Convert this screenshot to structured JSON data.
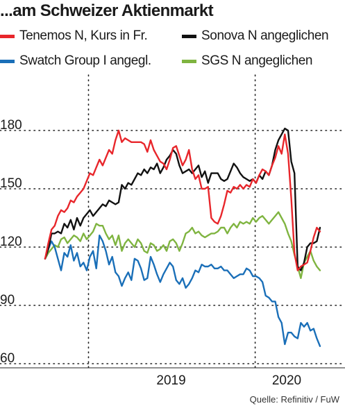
{
  "title": "...am Schweizer Aktienmarkt",
  "source": "Quelle: Refinitiv / FuW",
  "chart_data": {
    "type": "line",
    "x_ticks": [
      "2019",
      "2020"
    ],
    "y_ticks": [
      60,
      90,
      120,
      150,
      180
    ],
    "ylim": [
      60,
      195
    ],
    "grid": "dotted",
    "legend_position": "top",
    "series": [
      {
        "name": "Tenemos N, Kurs in Fr.",
        "color": "#e8262b",
        "x": [
          "2018-09-28",
          "2018-10-05",
          "2018-10-12",
          "2018-10-19",
          "2018-10-26",
          "2018-11-02",
          "2018-11-09",
          "2018-11-16",
          "2018-11-23",
          "2018-11-30",
          "2018-12-07",
          "2018-12-14",
          "2018-12-21",
          "2018-12-28",
          "2019-01-04",
          "2019-01-11",
          "2019-01-18",
          "2019-01-25",
          "2019-02-01",
          "2019-02-08",
          "2019-02-15",
          "2019-02-22",
          "2019-03-01",
          "2019-03-08",
          "2019-03-15",
          "2019-03-22",
          "2019-03-29",
          "2019-04-05",
          "2019-04-12",
          "2019-04-19",
          "2019-04-26",
          "2019-05-03",
          "2019-05-10",
          "2019-05-17",
          "2019-05-24",
          "2019-05-31",
          "2019-06-07",
          "2019-06-14",
          "2019-06-21",
          "2019-06-28",
          "2019-07-05",
          "2019-07-12",
          "2019-07-19",
          "2019-07-26",
          "2019-08-02",
          "2019-08-09",
          "2019-08-16",
          "2019-08-23",
          "2019-08-30",
          "2019-09-06",
          "2019-09-13",
          "2019-09-20",
          "2019-09-27",
          "2019-10-04",
          "2019-10-11",
          "2019-10-18",
          "2019-10-25",
          "2019-11-01",
          "2019-11-08",
          "2019-11-15",
          "2019-11-22",
          "2019-11-29",
          "2019-12-06",
          "2019-12-13",
          "2019-12-20",
          "2019-12-27",
          "2020-01-03",
          "2020-01-10",
          "2020-01-17",
          "2020-01-24",
          "2020-01-31",
          "2020-02-07",
          "2020-02-14",
          "2020-02-21",
          "2020-02-28",
          "2020-03-06",
          "2020-03-13",
          "2020-03-20",
          "2020-03-27",
          "2020-04-03",
          "2020-04-10",
          "2020-04-17",
          "2020-04-24",
          "2020-05-01",
          "2020-05-08",
          "2020-05-15",
          "2020-05-22"
        ],
        "values": [
          114,
          122,
          129,
          131,
          136,
          139,
          138,
          140,
          144,
          143,
          146,
          148,
          150,
          154,
          158,
          157,
          161,
          165,
          162,
          166,
          170,
          168,
          175,
          180,
          174,
          176,
          175,
          174,
          174,
          174,
          174,
          173,
          169,
          175,
          170,
          167,
          164,
          163,
          160,
          165,
          171,
          172,
          167,
          162,
          165,
          170,
          160,
          155,
          157,
          150,
          150,
          151,
          135,
          133,
          132,
          136,
          142,
          149,
          148,
          151,
          150,
          152,
          150,
          152,
          151,
          155,
          153,
          157,
          160,
          159,
          157,
          162,
          166,
          172,
          168,
          178,
          168,
          145,
          117,
          108,
          110,
          111,
          112,
          118,
          125,
          130,
          128
        ]
      },
      {
        "name": "Sonova N angeglichen",
        "color": "#111111",
        "x": [
          "2018-09-28",
          "2018-10-05",
          "2018-10-12",
          "2018-10-19",
          "2018-10-26",
          "2018-11-02",
          "2018-11-09",
          "2018-11-16",
          "2018-11-23",
          "2018-11-30",
          "2018-12-07",
          "2018-12-14",
          "2018-12-21",
          "2018-12-28",
          "2019-01-04",
          "2019-01-11",
          "2019-01-18",
          "2019-01-25",
          "2019-02-01",
          "2019-02-08",
          "2019-02-15",
          "2019-02-22",
          "2019-03-01",
          "2019-03-08",
          "2019-03-15",
          "2019-03-22",
          "2019-03-29",
          "2019-04-05",
          "2019-04-12",
          "2019-04-19",
          "2019-04-26",
          "2019-05-03",
          "2019-05-10",
          "2019-05-17",
          "2019-05-24",
          "2019-05-31",
          "2019-06-07",
          "2019-06-14",
          "2019-06-21",
          "2019-06-28",
          "2019-07-05",
          "2019-07-12",
          "2019-07-19",
          "2019-07-26",
          "2019-08-02",
          "2019-08-09",
          "2019-08-16",
          "2019-08-23",
          "2019-08-30",
          "2019-09-06",
          "2019-09-13",
          "2019-09-20",
          "2019-09-27",
          "2019-10-04",
          "2019-10-11",
          "2019-10-18",
          "2019-10-25",
          "2019-11-01",
          "2019-11-08",
          "2019-11-15",
          "2019-11-22",
          "2019-11-29",
          "2019-12-06",
          "2019-12-13",
          "2019-12-20",
          "2019-12-27",
          "2020-01-03",
          "2020-01-10",
          "2020-01-17",
          "2020-01-24",
          "2020-01-31",
          "2020-02-07",
          "2020-02-14",
          "2020-02-21",
          "2020-02-28",
          "2020-03-06",
          "2020-03-13",
          "2020-03-20",
          "2020-03-27",
          "2020-04-03",
          "2020-04-10",
          "2020-04-17",
          "2020-04-24",
          "2020-05-01",
          "2020-05-08",
          "2020-05-15",
          "2020-05-22"
        ],
        "values": [
          114,
          119,
          127,
          127,
          128,
          127,
          132,
          130,
          134,
          129,
          135,
          131,
          135,
          137,
          139,
          136,
          138,
          140,
          142,
          141,
          144,
          143,
          142,
          143,
          152,
          150,
          153,
          152,
          155,
          158,
          157,
          160,
          158,
          161,
          160,
          163,
          158,
          161,
          165,
          167,
          170,
          168,
          162,
          158,
          159,
          160,
          158,
          160,
          162,
          156,
          159,
          153,
          158,
          158,
          158,
          155,
          154,
          155,
          159,
          163,
          161,
          158,
          156,
          155,
          154,
          155,
          153,
          157,
          155,
          159,
          157,
          162,
          170,
          175,
          178,
          181,
          180,
          164,
          158,
          110,
          108,
          112,
          120,
          122,
          122,
          123,
          130
        ]
      },
      {
        "name": "Swatch Group I angegl.",
        "color": "#1a6fb8",
        "x": [
          "2018-09-28",
          "2018-10-05",
          "2018-10-12",
          "2018-10-19",
          "2018-10-26",
          "2018-11-02",
          "2018-11-09",
          "2018-11-16",
          "2018-11-23",
          "2018-11-30",
          "2018-12-07",
          "2018-12-14",
          "2018-12-21",
          "2018-12-28",
          "2019-01-04",
          "2019-01-11",
          "2019-01-18",
          "2019-01-25",
          "2019-02-01",
          "2019-02-08",
          "2019-02-15",
          "2019-02-22",
          "2019-03-01",
          "2019-03-08",
          "2019-03-15",
          "2019-03-22",
          "2019-03-29",
          "2019-04-05",
          "2019-04-12",
          "2019-04-19",
          "2019-04-26",
          "2019-05-03",
          "2019-05-10",
          "2019-05-17",
          "2019-05-24",
          "2019-05-31",
          "2019-06-07",
          "2019-06-14",
          "2019-06-21",
          "2019-06-28",
          "2019-07-05",
          "2019-07-12",
          "2019-07-19",
          "2019-07-26",
          "2019-08-02",
          "2019-08-09",
          "2019-08-16",
          "2019-08-23",
          "2019-08-30",
          "2019-09-06",
          "2019-09-13",
          "2019-09-20",
          "2019-09-27",
          "2019-10-04",
          "2019-10-11",
          "2019-10-18",
          "2019-10-25",
          "2019-11-01",
          "2019-11-08",
          "2019-11-15",
          "2019-11-22",
          "2019-11-29",
          "2019-12-06",
          "2019-12-13",
          "2019-12-20",
          "2019-12-27",
          "2020-01-03",
          "2020-01-10",
          "2020-01-17",
          "2020-01-24",
          "2020-01-31",
          "2020-02-07",
          "2020-02-14",
          "2020-02-21",
          "2020-02-28",
          "2020-03-06",
          "2020-03-13",
          "2020-03-20",
          "2020-03-27",
          "2020-04-03",
          "2020-04-10",
          "2020-04-17",
          "2020-04-24",
          "2020-05-01",
          "2020-05-08",
          "2020-05-15",
          "2020-05-22"
        ],
        "values": [
          114,
          119,
          123,
          120,
          114,
          108,
          117,
          115,
          121,
          113,
          117,
          110,
          112,
          108,
          115,
          118,
          109,
          126,
          123,
          118,
          111,
          115,
          107,
          105,
          100,
          104,
          107,
          103,
          114,
          113,
          109,
          103,
          104,
          115,
          111,
          106,
          102,
          106,
          109,
          112,
          110,
          103,
          101,
          104,
          99,
          101,
          104,
          108,
          107,
          111,
          110,
          110,
          111,
          109,
          109,
          110,
          108,
          108,
          106,
          104,
          105,
          106,
          106,
          109,
          108,
          105,
          105,
          104,
          102,
          95,
          94,
          92,
          92,
          84,
          81,
          70,
          76,
          76,
          74,
          73,
          81,
          79,
          81,
          77,
          78,
          73,
          69
        ]
      },
      {
        "name": "SGS N angeglichen",
        "color": "#7fb440",
        "x": [
          "2018-09-28",
          "2018-10-05",
          "2018-10-12",
          "2018-10-19",
          "2018-10-26",
          "2018-11-02",
          "2018-11-09",
          "2018-11-16",
          "2018-11-23",
          "2018-11-30",
          "2018-12-07",
          "2018-12-14",
          "2018-12-21",
          "2018-12-28",
          "2019-01-04",
          "2019-01-11",
          "2019-01-18",
          "2019-01-25",
          "2019-02-01",
          "2019-02-08",
          "2019-02-15",
          "2019-02-22",
          "2019-03-01",
          "2019-03-08",
          "2019-03-15",
          "2019-03-22",
          "2019-03-29",
          "2019-04-05",
          "2019-04-12",
          "2019-04-19",
          "2019-04-26",
          "2019-05-03",
          "2019-05-10",
          "2019-05-17",
          "2019-05-24",
          "2019-05-31",
          "2019-06-07",
          "2019-06-14",
          "2019-06-21",
          "2019-06-28",
          "2019-07-05",
          "2019-07-12",
          "2019-07-19",
          "2019-07-26",
          "2019-08-02",
          "2019-08-09",
          "2019-08-16",
          "2019-08-23",
          "2019-08-30",
          "2019-09-06",
          "2019-09-13",
          "2019-09-20",
          "2019-09-27",
          "2019-10-04",
          "2019-10-11",
          "2019-10-18",
          "2019-10-25",
          "2019-11-01",
          "2019-11-08",
          "2019-11-15",
          "2019-11-22",
          "2019-11-29",
          "2019-12-06",
          "2019-12-13",
          "2019-12-20",
          "2019-12-27",
          "2020-01-03",
          "2020-01-10",
          "2020-01-17",
          "2020-01-24",
          "2020-01-31",
          "2020-02-07",
          "2020-02-14",
          "2020-02-21",
          "2020-02-28",
          "2020-03-06",
          "2020-03-13",
          "2020-03-20",
          "2020-03-27",
          "2020-04-03",
          "2020-04-10",
          "2020-04-17",
          "2020-04-24",
          "2020-05-01",
          "2020-05-08",
          "2020-05-15",
          "2020-05-22"
        ],
        "values": [
          114,
          117,
          119,
          121,
          120,
          124,
          125,
          122,
          124,
          126,
          125,
          123,
          127,
          124,
          126,
          128,
          132,
          131,
          131,
          127,
          124,
          126,
          121,
          126,
          118,
          122,
          124,
          122,
          120,
          124,
          122,
          118,
          117,
          122,
          121,
          118,
          119,
          121,
          118,
          123,
          124,
          122,
          118,
          122,
          127,
          128,
          130,
          127,
          128,
          126,
          125,
          126,
          127,
          127,
          128,
          130,
          130,
          127,
          130,
          132,
          130,
          133,
          132,
          133,
          132,
          135,
          133,
          135,
          136,
          134,
          132,
          134,
          136,
          138,
          135,
          132,
          127,
          123,
          116,
          110,
          104,
          112,
          115,
          118,
          113,
          110,
          108
        ]
      }
    ]
  }
}
